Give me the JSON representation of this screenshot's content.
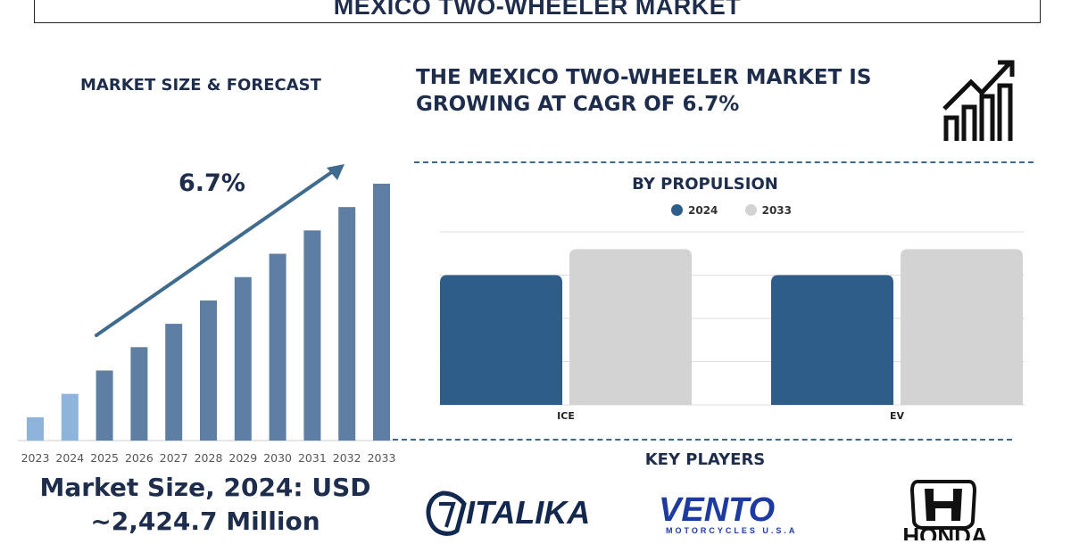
{
  "title": "MEXICO TWO-WHEELER MARKET",
  "left_panel": {
    "heading": "MARKET SIZE & FORECAST",
    "cagr": "6.7%",
    "market_size_line1": "Market Size, 2024: USD",
    "market_size_line2": "~2,424.7 Million"
  },
  "headline": {
    "line1": "THE MEXICO TWO-WHEELER MARKET IS",
    "line2": "GROWING AT CAGR OF 6.7%"
  },
  "propulsion_section": {
    "heading": "BY PROPULSION"
  },
  "key_players": {
    "heading": "KEY PLAYERS",
    "logos": [
      {
        "name": "ITALIKA",
        "sub": ""
      },
      {
        "name": "VENTO",
        "sub": "MOTORCYCLES U.S.A"
      },
      {
        "name": "HONDA",
        "sub": ""
      }
    ]
  },
  "colors": {
    "navy": "#1f2d4d",
    "steel": "#5e7fa3",
    "light_blue": "#8fb4dc",
    "bar_2024": "#2e5d8a",
    "bar_2033": "#d3d3d3"
  },
  "chart_data": [
    {
      "type": "bar",
      "title": "MARKET SIZE & FORECAST",
      "categories": [
        "2023",
        "2024",
        "2025",
        "2026",
        "2027",
        "2028",
        "2029",
        "2030",
        "2031",
        "2032",
        "2033"
      ],
      "values": [
        1,
        2,
        3,
        4,
        5,
        6,
        7,
        8,
        9,
        10,
        11
      ],
      "annotation": "6.7%",
      "xlabel": "",
      "ylabel": "",
      "grid": false,
      "legend": "none"
    },
    {
      "type": "bar",
      "title": "BY PROPULSION",
      "categories": [
        "ICE",
        "EV"
      ],
      "series": [
        {
          "name": "2024",
          "values": [
            75,
            75
          ]
        },
        {
          "name": "2033",
          "values": [
            90,
            90
          ]
        }
      ],
      "ylim": [
        0,
        100
      ],
      "grid": true,
      "legend": "top-center"
    }
  ]
}
